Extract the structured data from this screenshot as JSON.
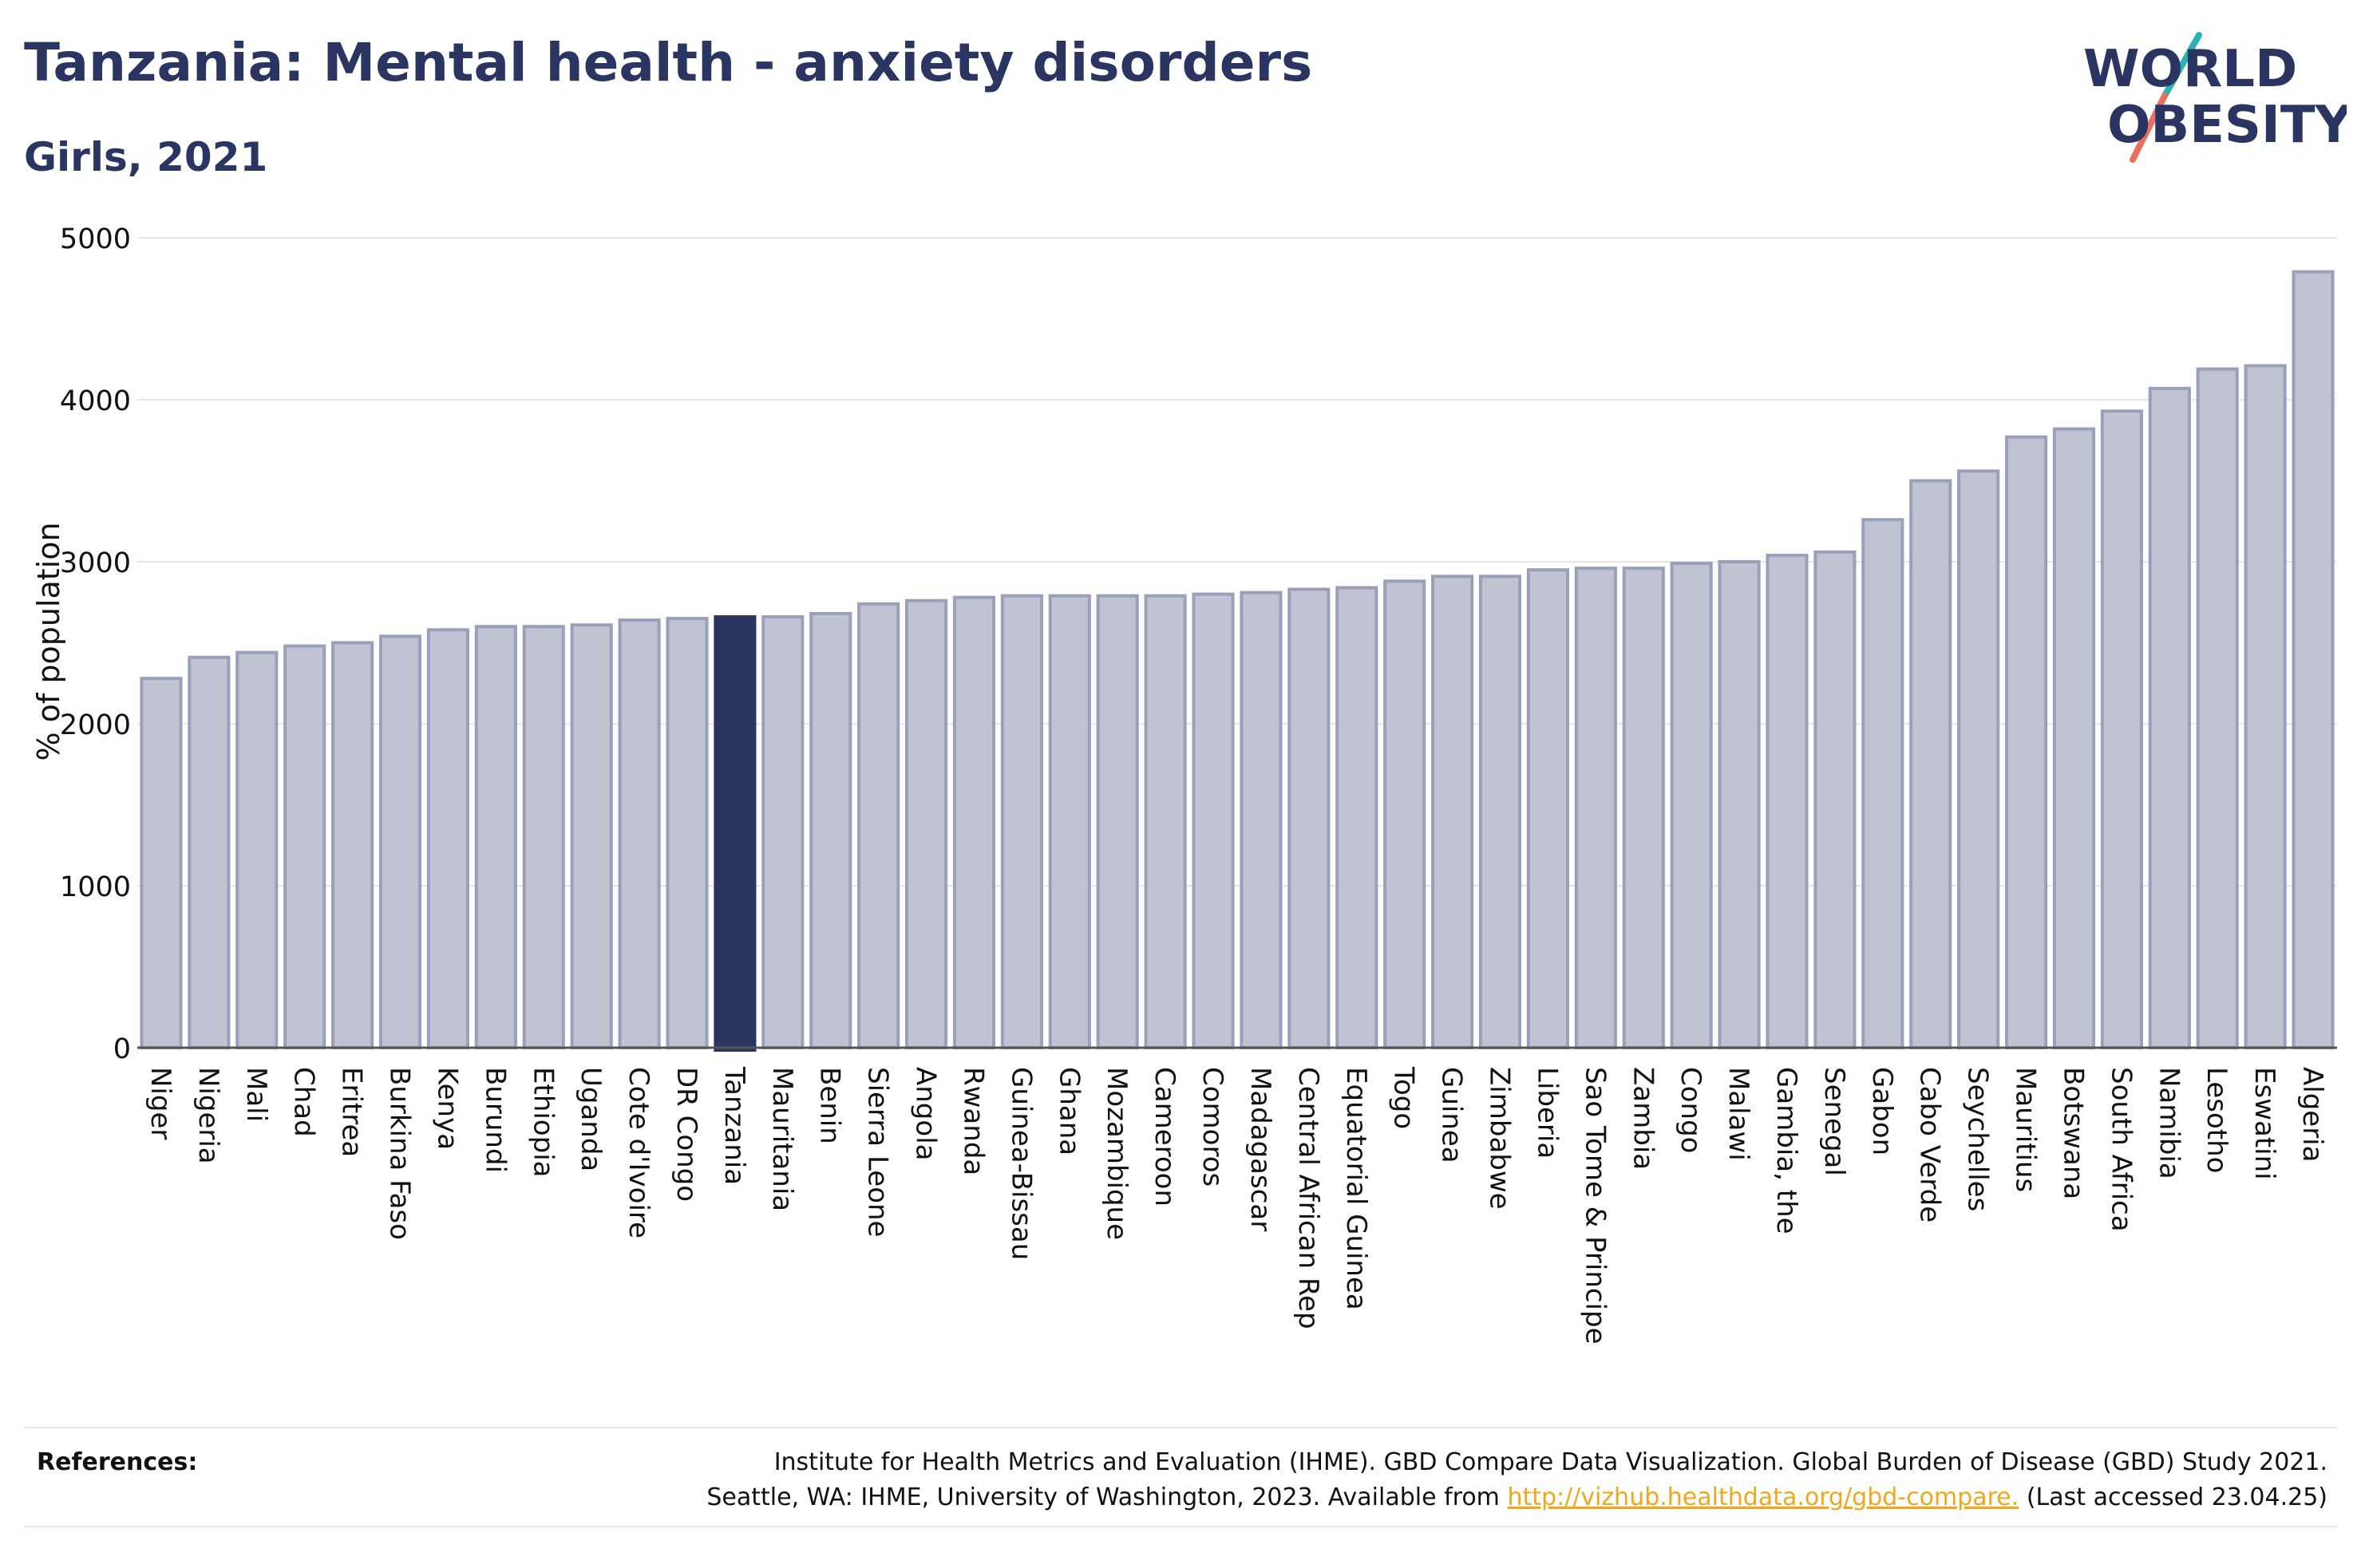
{
  "header": {
    "title": "Tanzania: Mental health - anxiety disorders",
    "subtitle": "Girls, 2021"
  },
  "logo": {
    "line1": "WORLD",
    "line2": "OBESITY"
  },
  "colors": {
    "bar": "#bfc3d2",
    "bar_edge": "#9aa0b9",
    "highlight": "#2a3561",
    "text": "#2a3561",
    "grid": "#e6e6e6",
    "logo_teal": "#2ab3b1",
    "logo_coral": "#e8705e",
    "link": "#f0a81a"
  },
  "references": {
    "label": "References:",
    "line1": "Institute for Health Metrics and Evaluation (IHME). GBD Compare Data Visualization. Global Burden of Disease (GBD) Study 2021.",
    "line2_pre": "Seattle, WA: IHME, University of Washington, 2023. Available from ",
    "link": "http://vizhub.healthdata.org/gbd-compare.",
    "line2_post": " (Last accessed 23.04.25)"
  },
  "chart_data": {
    "type": "bar",
    "title": "Tanzania: Mental health - anxiety disorders",
    "subtitle": "Girls, 2021",
    "xlabel": "",
    "ylabel": "% of population",
    "ylim": [
      0,
      5000
    ],
    "yticks": [
      0,
      1000,
      2000,
      3000,
      4000,
      5000
    ],
    "grid": true,
    "highlight": "Tanzania",
    "categories": [
      "Niger",
      "Nigeria",
      "Mali",
      "Chad",
      "Eritrea",
      "Burkina Faso",
      "Kenya",
      "Burundi",
      "Ethiopia",
      "Uganda",
      "Cote d'Ivoire",
      "DR Congo",
      "Tanzania",
      "Mauritania",
      "Benin",
      "Sierra Leone",
      "Angola",
      "Rwanda",
      "Guinea-Bissau",
      "Ghana",
      "Mozambique",
      "Cameroon",
      "Comoros",
      "Madagascar",
      "Central African Rep",
      "Equatorial Guinea",
      "Togo",
      "Guinea",
      "Zimbabwe",
      "Liberia",
      "Sao Tome & Principe",
      "Zambia",
      "Congo",
      "Malawi",
      "Gambia, the",
      "Senegal",
      "Gabon",
      "Cabo Verde",
      "Seychelles",
      "Mauritius",
      "Botswana",
      "South Africa",
      "Namibia",
      "Lesotho",
      "Eswatini",
      "Algeria"
    ],
    "values": [
      2280,
      2410,
      2440,
      2480,
      2500,
      2540,
      2580,
      2600,
      2600,
      2610,
      2640,
      2650,
      2660,
      2660,
      2680,
      2740,
      2760,
      2780,
      2790,
      2790,
      2790,
      2790,
      2800,
      2810,
      2830,
      2840,
      2880,
      2910,
      2910,
      2950,
      2960,
      2960,
      2990,
      3000,
      3040,
      3060,
      3260,
      3500,
      3560,
      3770,
      3820,
      3930,
      4070,
      4190,
      4210,
      4790
    ]
  }
}
